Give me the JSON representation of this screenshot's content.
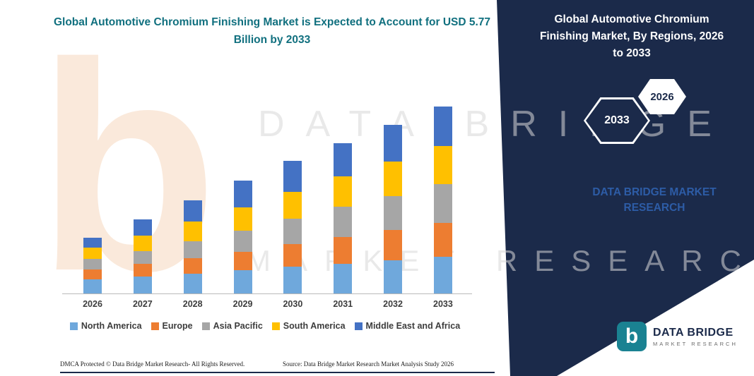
{
  "page": {
    "right_panel": {
      "title": "Global Automotive Chromium Finishing Market, By Regions, 2026 to 2033",
      "hexagon_back_label": "2033",
      "hexagon_front_label": "2026",
      "brand_text": "DATA BRIDGE MARKET RESEARCH"
    },
    "watermark": {
      "line1": "DATA BRIDGE",
      "line2": "MARKET RESEARCH"
    },
    "logo": {
      "icon_letter": "b",
      "name": "DATA BRIDGE",
      "subtitle": "MARKET RESEARCH"
    },
    "footer": {
      "dmca": "DMCA Protected © Data Bridge Market Research-  All Rights Reserved.",
      "source": "Source: Data Bridge Market Research  Market Analysis Study 2026"
    }
  },
  "colors": {
    "navy": "#1b2a4a",
    "teal": "#11707f",
    "brand": "#2d5ca6",
    "peach": "#f8dcc4",
    "logo": "#1a8292",
    "watermark": "#d8d8d8"
  },
  "chart_data": {
    "type": "bar",
    "stacked": true,
    "title": "Global Automotive Chromium Finishing Market is Expected to Account for USD 5.77 Billion by 2033",
    "xlabel": "",
    "ylabel": "",
    "units": "USD Billion (estimated from bar heights)",
    "ylim": [
      0,
      6
    ],
    "grid": false,
    "legend_position": "bottom",
    "categories": [
      "2026",
      "2027",
      "2028",
      "2029",
      "2030",
      "2031",
      "2032",
      "2033"
    ],
    "series": [
      {
        "name": "North America",
        "color": "#6fa8dc",
        "values": [
          0.44,
          0.52,
          0.61,
          0.72,
          0.83,
          0.92,
          1.02,
          1.13
        ]
      },
      {
        "name": "Europe",
        "color": "#ed7d31",
        "values": [
          0.31,
          0.39,
          0.48,
          0.57,
          0.7,
          0.83,
          0.94,
          1.05
        ]
      },
      {
        "name": "Asia Pacific",
        "color": "#a6a6a6",
        "values": [
          0.31,
          0.39,
          0.52,
          0.65,
          0.78,
          0.92,
          1.05,
          1.2
        ]
      },
      {
        "name": "South America",
        "color": "#ffc000",
        "values": [
          0.35,
          0.48,
          0.61,
          0.72,
          0.83,
          0.94,
          1.05,
          1.16
        ]
      },
      {
        "name": "Middle East and Africa",
        "color": "#4472c4",
        "values": [
          0.31,
          0.5,
          0.65,
          0.83,
          0.94,
          1.02,
          1.13,
          1.23
        ]
      }
    ],
    "totals_by_year": [
      1.72,
      2.28,
      2.87,
      3.49,
      4.08,
      4.63,
      5.19,
      5.77
    ],
    "highlight_value": "USD 5.77 Billion by 2033"
  }
}
